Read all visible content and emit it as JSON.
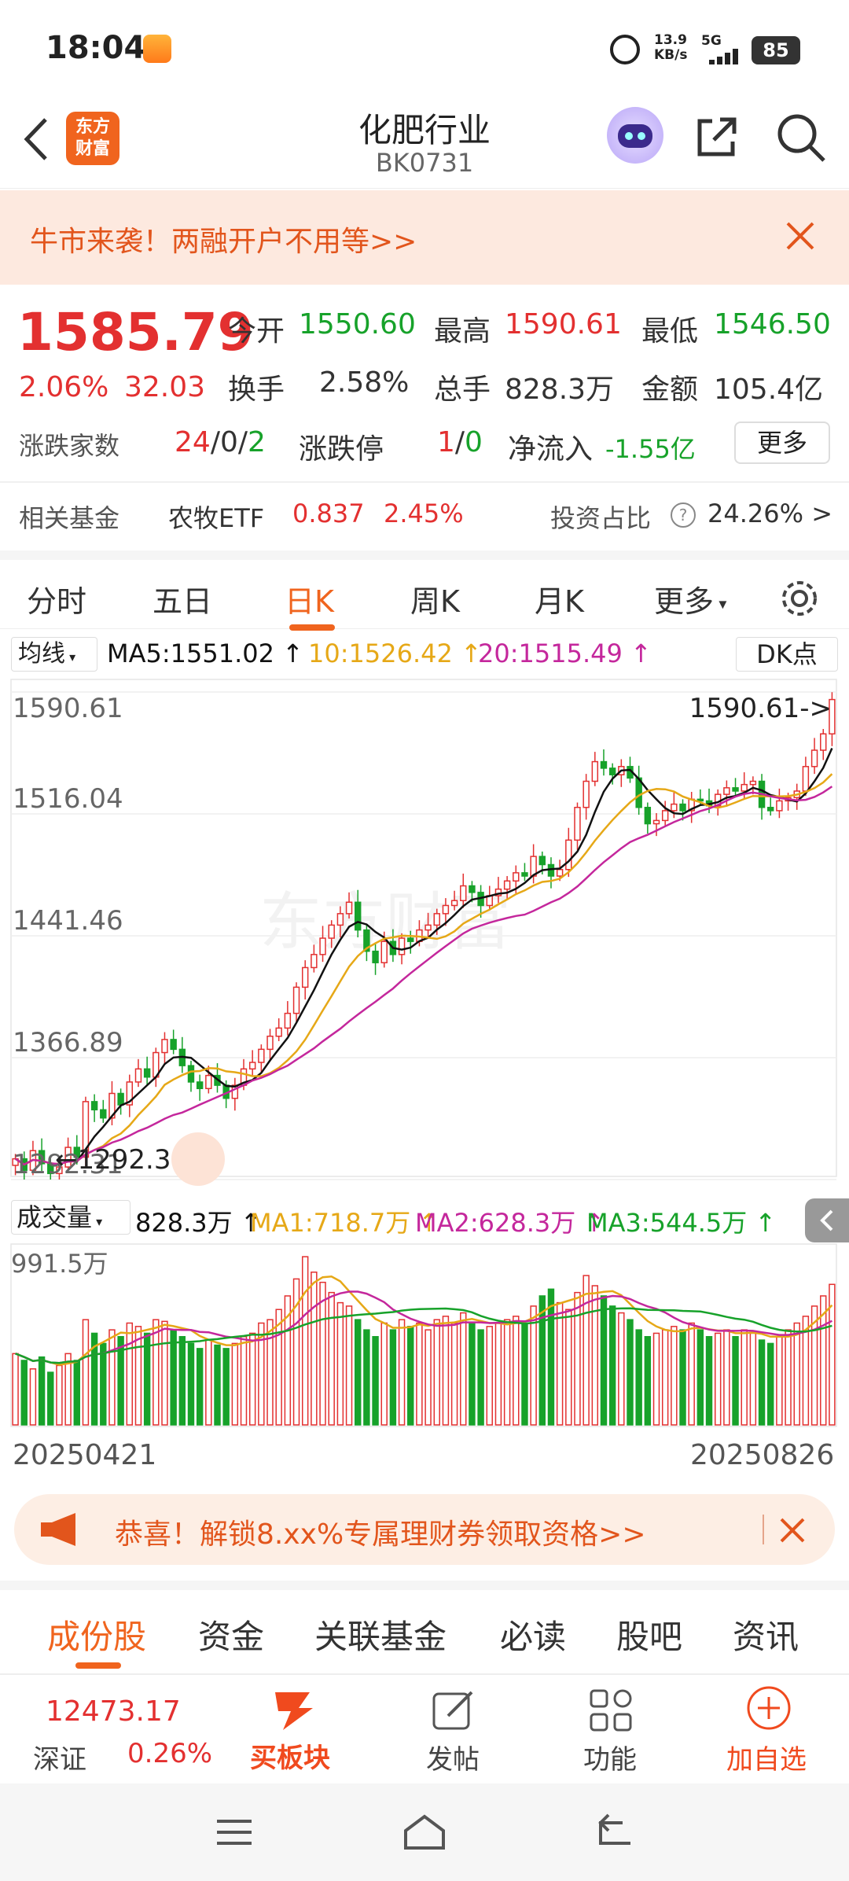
{
  "status_bar": {
    "time": "18:04",
    "net_speed_value": "13.9",
    "net_speed_unit": "KB/s",
    "signal": "5G",
    "battery": "85"
  },
  "header": {
    "logo_line1": "东方",
    "logo_line2": "财富",
    "title": "化肥行业",
    "code": "BK0731"
  },
  "promo_banner": {
    "text": "牛市来袭！两融开户不用等>>"
  },
  "quote": {
    "price": "1585.79",
    "change_pct": "2.06%",
    "change": "32.03",
    "open_label": "今开",
    "open": "1550.60",
    "high_label": "最高",
    "high": "1590.61",
    "low_label": "最低",
    "low": "1546.50",
    "turnover_label": "换手",
    "turnover": "2.58%",
    "volume_label": "总手",
    "volume": "828.3万",
    "amount_label": "金额",
    "amount": "105.4亿",
    "breadth_label": "涨跌家数",
    "breadth_up": "24",
    "breadth_sep1": "/",
    "breadth_flat": "0",
    "breadth_sep2": "/",
    "breadth_down": "2",
    "limit_label": "涨跌停",
    "limit_up": "1",
    "limit_sep": "/",
    "limit_down": "0",
    "inflow_label": "净流入",
    "inflow": "-1.55亿",
    "more_button": "更多",
    "fund_label": "相关基金",
    "fund_name": "农牧ETF",
    "fund_price": "0.837",
    "fund_pct": "2.45%",
    "ratio_label": "投资占比",
    "ratio_value": "24.26% >"
  },
  "chart_tabs": [
    "分时",
    "五日",
    "日K",
    "周K",
    "月K",
    "更多"
  ],
  "chart_tab_active": "日K",
  "ma_header": {
    "selector": "均线",
    "ma5": "MA5:1551.02 ↑",
    "ma10": "10:1526.42 ↑",
    "ma20": "20:1515.49 ↑",
    "dk": "DK点"
  },
  "volume_header": {
    "selector": "成交量",
    "vol": "828.3万 ↑",
    "ma1": "MA1:718.7万 ↑",
    "ma2": "MA2:628.3万 ↑",
    "ma3": "MA3:544.5万 ↑"
  },
  "chart_data": {
    "type": "candlestick",
    "y_ticks": [
      "1590.61",
      "1516.04",
      "1441.46",
      "1366.89",
      "1292.31"
    ],
    "ylim": [
      1292.31,
      1590.61
    ],
    "max_annotation": "1590.61->",
    "min_annotation": "1292.31",
    "volume_max_label": "991.5万",
    "x_start": "20250421",
    "x_end": "20250826",
    "series": [
      {
        "name": "MA5",
        "last": 1551.02
      },
      {
        "name": "MA10",
        "last": 1526.42
      },
      {
        "name": "MA20",
        "last": 1515.49
      }
    ],
    "close": [
      1305,
      1298,
      1310,
      1302,
      1296,
      1300,
      1312,
      1306,
      1340,
      1335,
      1330,
      1345,
      1338,
      1352,
      1360,
      1355,
      1370,
      1378,
      1372,
      1362,
      1352,
      1348,
      1356,
      1350,
      1342,
      1350,
      1360,
      1364,
      1372,
      1380,
      1385,
      1394,
      1410,
      1422,
      1430,
      1440,
      1448,
      1455,
      1462,
      1445,
      1432,
      1425,
      1438,
      1430,
      1440,
      1438,
      1445,
      1448,
      1455,
      1460,
      1463,
      1472,
      1468,
      1460,
      1466,
      1470,
      1475,
      1480,
      1478,
      1490,
      1485,
      1478,
      1482,
      1500,
      1520,
      1536,
      1548,
      1544,
      1540,
      1545,
      1538,
      1520,
      1510,
      1512,
      1518,
      1522,
      1518,
      1525,
      1524,
      1521,
      1528,
      1532,
      1530,
      1534,
      1536,
      1520,
      1518,
      1524,
      1526,
      1530,
      1545,
      1555,
      1565,
      1586
    ],
    "volume": [
      420,
      380,
      330,
      400,
      310,
      350,
      420,
      380,
      620,
      540,
      480,
      560,
      520,
      600,
      580,
      540,
      620,
      610,
      560,
      520,
      480,
      450,
      500,
      470,
      450,
      480,
      520,
      540,
      600,
      620,
      680,
      760,
      860,
      991,
      900,
      840,
      780,
      720,
      700,
      620,
      560,
      520,
      600,
      560,
      620,
      580,
      600,
      560,
      620,
      640,
      600,
      660,
      600,
      560,
      580,
      600,
      620,
      640,
      600,
      700,
      760,
      800,
      720,
      680,
      780,
      880,
      820,
      760,
      700,
      660,
      620,
      560,
      520,
      540,
      560,
      580,
      560,
      600,
      560,
      520,
      540,
      560,
      520,
      560,
      540,
      500,
      480,
      520,
      560,
      600,
      640,
      700,
      760,
      828
    ],
    "ma_volume": {
      "MA1": 718.7,
      "MA2": 628.3,
      "MA3": 544.5
    }
  },
  "promo_banner2": {
    "text": "恭喜！解锁8.xx%专属理财券领取资格>>"
  },
  "sub_tabs": [
    "成份股",
    "资金",
    "关联基金",
    "必读",
    "股吧",
    "资讯"
  ],
  "bottom_bar": {
    "index_value": "12473.17",
    "index_name": "深证",
    "index_pct": "0.26%",
    "buy_label": "买板块",
    "post_label": "发帖",
    "func_label": "功能",
    "add_label": "加自选"
  },
  "colors": {
    "up": "#e33030",
    "down": "#17a22a",
    "brand": "#f0641e",
    "ma5": "#111111",
    "ma10": "#e6a817",
    "ma20": "#c4279c"
  }
}
